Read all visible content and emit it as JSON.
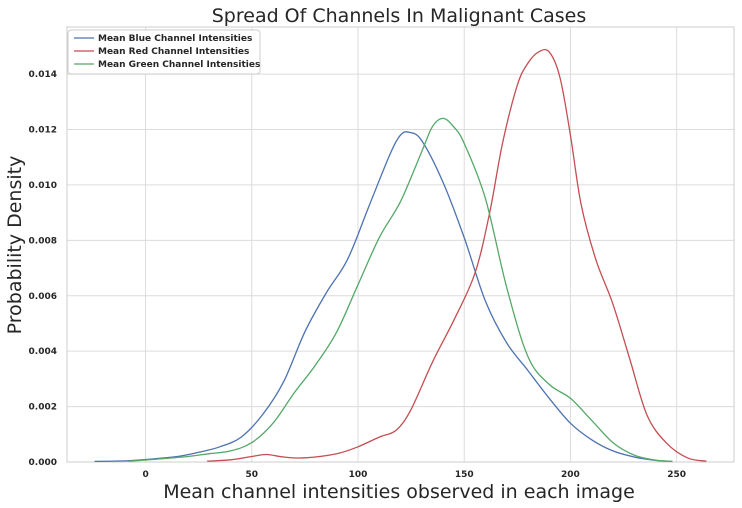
{
  "chart_data": {
    "type": "line",
    "title": "Spread Of Channels In Malignant Cases",
    "xlabel": "Mean channel intensities observed in each image",
    "ylabel": "Probability Density",
    "xlim": [
      -37,
      277
    ],
    "ylim": [
      0,
      0.0157
    ],
    "xticks": [
      0,
      50,
      100,
      150,
      200,
      250
    ],
    "xtick_labels": [
      "0",
      "50",
      "100",
      "150",
      "200",
      "250"
    ],
    "yticks": [
      0,
      0.002,
      0.004,
      0.006,
      0.008,
      0.01,
      0.012,
      0.014
    ],
    "ytick_labels": [
      "0.000",
      "0.002",
      "0.004",
      "0.006",
      "0.008",
      "0.010",
      "0.012",
      "0.014"
    ],
    "grid": true,
    "legend_position": "top-left",
    "series": [
      {
        "name": "Mean Blue Channel Intensities",
        "color": "#4c72b0",
        "points": [
          [
            -24,
            2e-05
          ],
          [
            -10,
            4e-05
          ],
          [
            0,
            9e-05
          ],
          [
            15,
            0.0002
          ],
          [
            25,
            0.00035
          ],
          [
            35,
            0.00055
          ],
          [
            45,
            0.0009
          ],
          [
            55,
            0.0017
          ],
          [
            65,
            0.0029
          ],
          [
            75,
            0.0047
          ],
          [
            85,
            0.0061
          ],
          [
            95,
            0.0073
          ],
          [
            105,
            0.0092
          ],
          [
            115,
            0.0111
          ],
          [
            120,
            0.0118
          ],
          [
            124,
            0.0119
          ],
          [
            130,
            0.0116
          ],
          [
            140,
            0.0101
          ],
          [
            150,
            0.0081
          ],
          [
            160,
            0.0058
          ],
          [
            170,
            0.0043
          ],
          [
            180,
            0.0033
          ],
          [
            190,
            0.0023
          ],
          [
            200,
            0.0014
          ],
          [
            210,
            0.0008
          ],
          [
            220,
            0.0004
          ],
          [
            230,
            0.00018
          ],
          [
            240,
            6e-05
          ],
          [
            248,
            2e-05
          ]
        ]
      },
      {
        "name": "Mean Red Channel Intensities",
        "color": "#c44e52",
        "points": [
          [
            29,
            3e-05
          ],
          [
            40,
            8e-05
          ],
          [
            50,
            0.0002
          ],
          [
            57,
            0.00027
          ],
          [
            65,
            0.00018
          ],
          [
            75,
            0.00015
          ],
          [
            90,
            0.0003
          ],
          [
            100,
            0.00055
          ],
          [
            110,
            0.0009
          ],
          [
            118,
            0.00115
          ],
          [
            125,
            0.0019
          ],
          [
            135,
            0.0036
          ],
          [
            145,
            0.0051
          ],
          [
            155,
            0.0068
          ],
          [
            162,
            0.009
          ],
          [
            168,
            0.0115
          ],
          [
            175,
            0.0136
          ],
          [
            180,
            0.0144
          ],
          [
            185,
            0.0148
          ],
          [
            190,
            0.0148
          ],
          [
            195,
            0.0139
          ],
          [
            200,
            0.0118
          ],
          [
            205,
            0.0093
          ],
          [
            212,
            0.0073
          ],
          [
            220,
            0.0057
          ],
          [
            228,
            0.0037
          ],
          [
            236,
            0.0017
          ],
          [
            245,
            0.0007
          ],
          [
            255,
            0.00015
          ],
          [
            264,
            3e-05
          ]
        ]
      },
      {
        "name": "Mean Green Channel Intensities",
        "color": "#55a868",
        "points": [
          [
            -8,
            3e-05
          ],
          [
            5,
            0.0001
          ],
          [
            20,
            0.0002
          ],
          [
            30,
            0.0003
          ],
          [
            40,
            0.0004
          ],
          [
            50,
            0.0007
          ],
          [
            60,
            0.0014
          ],
          [
            70,
            0.0025
          ],
          [
            80,
            0.0035
          ],
          [
            90,
            0.0047
          ],
          [
            100,
            0.0064
          ],
          [
            110,
            0.0081
          ],
          [
            120,
            0.0094
          ],
          [
            130,
            0.0112
          ],
          [
            135,
            0.0121
          ],
          [
            140,
            0.0124
          ],
          [
            145,
            0.0121
          ],
          [
            150,
            0.0115
          ],
          [
            160,
            0.0095
          ],
          [
            170,
            0.0063
          ],
          [
            180,
            0.0038
          ],
          [
            190,
            0.0028
          ],
          [
            200,
            0.0023
          ],
          [
            210,
            0.0015
          ],
          [
            220,
            0.0007
          ],
          [
            230,
            0.00025
          ],
          [
            240,
            7e-05
          ],
          [
            248,
            2e-05
          ]
        ]
      }
    ]
  }
}
